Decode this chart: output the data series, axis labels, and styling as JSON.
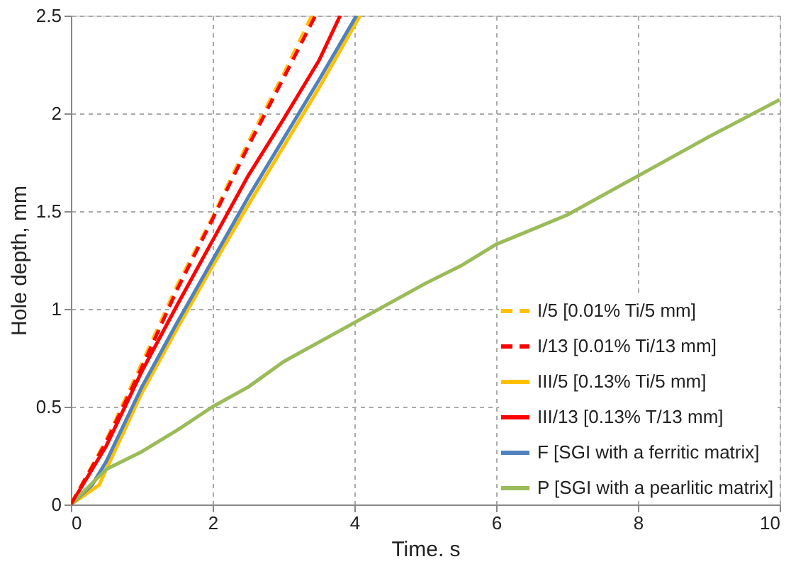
{
  "chart_data": {
    "type": "line",
    "xlabel": "Time. s",
    "ylabel": "Hole depth, mm",
    "xlim": [
      0,
      10
    ],
    "ylim": [
      0,
      2.5
    ],
    "xticks": [
      0,
      2,
      4,
      6,
      8,
      10
    ],
    "yticks": [
      0,
      0.5,
      1,
      1.5,
      2,
      2.5
    ],
    "grid": true,
    "legend": "bottom right",
    "marker": "none",
    "series": [
      {
        "name": "I/5 [0.01% Ti/5 mm]",
        "color": "#ffc000",
        "line_style": "dashed",
        "x": [
          0,
          0.5,
          1,
          1.5,
          2,
          2.5,
          3,
          3.4
        ],
        "values": [
          0,
          0.33,
          0.72,
          1.12,
          1.47,
          1.85,
          2.2,
          2.5
        ]
      },
      {
        "name": "I/13 [0.01% Ti/13 mm]",
        "color": "#ff0000",
        "line_style": "dashed",
        "x": [
          0,
          0.5,
          1,
          1.5,
          2,
          2.5,
          3,
          3.45
        ],
        "values": [
          0,
          0.32,
          0.7,
          1.1,
          1.46,
          1.83,
          2.18,
          2.5
        ]
      },
      {
        "name": "III/5 [0.13% Ti/5 mm]",
        "color": "#ffc000",
        "line_style": "solid",
        "x": [
          0,
          0.4,
          0.5,
          1,
          1.5,
          2,
          2.5,
          3,
          3.5,
          4.08
        ],
        "values": [
          0,
          0.1,
          0.18,
          0.57,
          0.9,
          1.22,
          1.53,
          1.83,
          2.13,
          2.5
        ]
      },
      {
        "name": "III/13 [0.13% T/13 mm]",
        "color": "#ff0000",
        "line_style": "solid",
        "x": [
          0,
          0.5,
          1,
          1.5,
          2,
          2.5,
          3,
          3.5,
          3.8
        ],
        "values": [
          0,
          0.3,
          0.68,
          1.02,
          1.35,
          1.68,
          1.97,
          2.27,
          2.5
        ]
      },
      {
        "name": "F [SGI with a ferritic matrix]",
        "color": "#4f81bd",
        "line_style": "solid",
        "x": [
          0,
          0.3,
          0.5,
          1,
          1.5,
          2,
          2.5,
          3,
          3.5,
          4.03
        ],
        "values": [
          0,
          0.1,
          0.22,
          0.6,
          0.93,
          1.25,
          1.57,
          1.87,
          2.17,
          2.5
        ]
      },
      {
        "name": "P [SGI with a pearlitic matrix]",
        "color": "#9bbb59",
        "line_style": "solid",
        "x": [
          0,
          0.5,
          1,
          1.5,
          2,
          2.5,
          3,
          4,
          5,
          5.5,
          6,
          7,
          7.5,
          8,
          9,
          10
        ],
        "values": [
          0,
          0.18,
          0.27,
          0.38,
          0.5,
          0.6,
          0.73,
          0.93,
          1.13,
          1.22,
          1.33,
          1.48,
          1.58,
          1.68,
          1.88,
          2.07
        ]
      }
    ]
  }
}
